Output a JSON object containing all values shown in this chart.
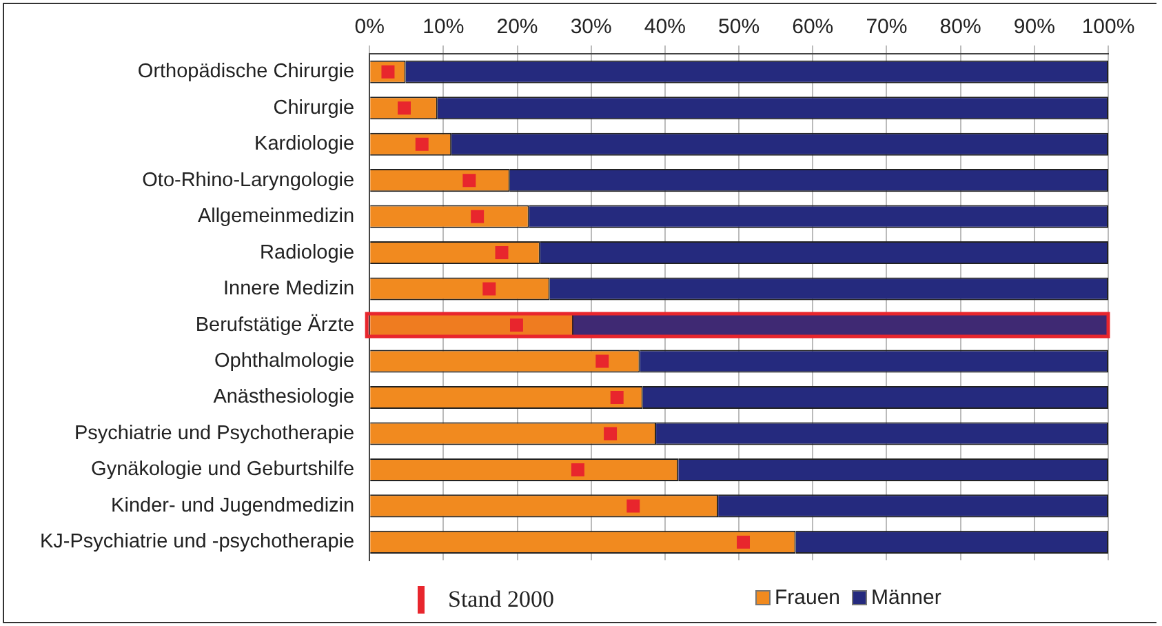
{
  "chart_data": {
    "type": "bar",
    "orientation": "horizontal",
    "stacked": true,
    "categories": [
      "Orthopädische Chirurgie",
      "Chirurgie",
      "Kardiologie",
      "Oto-Rhino-Laryngologie",
      "Allgemeinmedizin",
      "Radiologie",
      "Innere Medizin",
      "Berufstätige Ärzte",
      "Ophthalmologie",
      "Anästhesiologie",
      "Psychiatrie und Psychotherapie",
      "Gynäkologie und Geburtshilfe",
      "Kinder- und Jugendmedizin",
      "KJ-Psychiatrie und -psychotherapie"
    ],
    "series": [
      {
        "name": "Frauen",
        "color": "#f18a1f",
        "values": [
          4.9,
          9.2,
          11.1,
          19.0,
          21.6,
          23.1,
          24.4,
          27.6,
          36.6,
          37.0,
          38.8,
          41.8,
          47.2,
          57.7
        ]
      },
      {
        "name": "Männer",
        "color": "#252a7e",
        "values": [
          95.1,
          90.8,
          88.9,
          81.0,
          78.4,
          76.9,
          75.6,
          72.4,
          63.4,
          63.0,
          61.2,
          58.2,
          52.8,
          42.3
        ]
      },
      {
        "name": "Stand 2000",
        "type": "scatter",
        "color": "#e8262d",
        "values": [
          2.5,
          4.7,
          7.1,
          13.5,
          14.6,
          17.9,
          16.2,
          19.9,
          31.5,
          33.5,
          32.6,
          28.2,
          35.7,
          50.6
        ]
      }
    ],
    "xlim": [
      0,
      100
    ],
    "xticks": [
      {
        "value": 0,
        "label": "0%"
      },
      {
        "value": 10,
        "label": "10%"
      },
      {
        "value": 20,
        "label": "20%"
      },
      {
        "value": 30,
        "label": "30%"
      },
      {
        "value": 40,
        "label": "40%"
      },
      {
        "value": 50,
        "label": "50%"
      },
      {
        "value": 60,
        "label": "60%"
      },
      {
        "value": 70,
        "label": "70%"
      },
      {
        "value": 80,
        "label": "80%"
      },
      {
        "value": 90,
        "label": "90%"
      },
      {
        "value": 100,
        "label": "100%"
      }
    ],
    "grid": "x",
    "legend": "bottom",
    "marker": "square",
    "bands": [
      {
        "axis": "y",
        "from": "Berufstätige Ärzte",
        "to": "Berufstätige Ärzte",
        "color": "#e8262d"
      }
    ]
  }
}
